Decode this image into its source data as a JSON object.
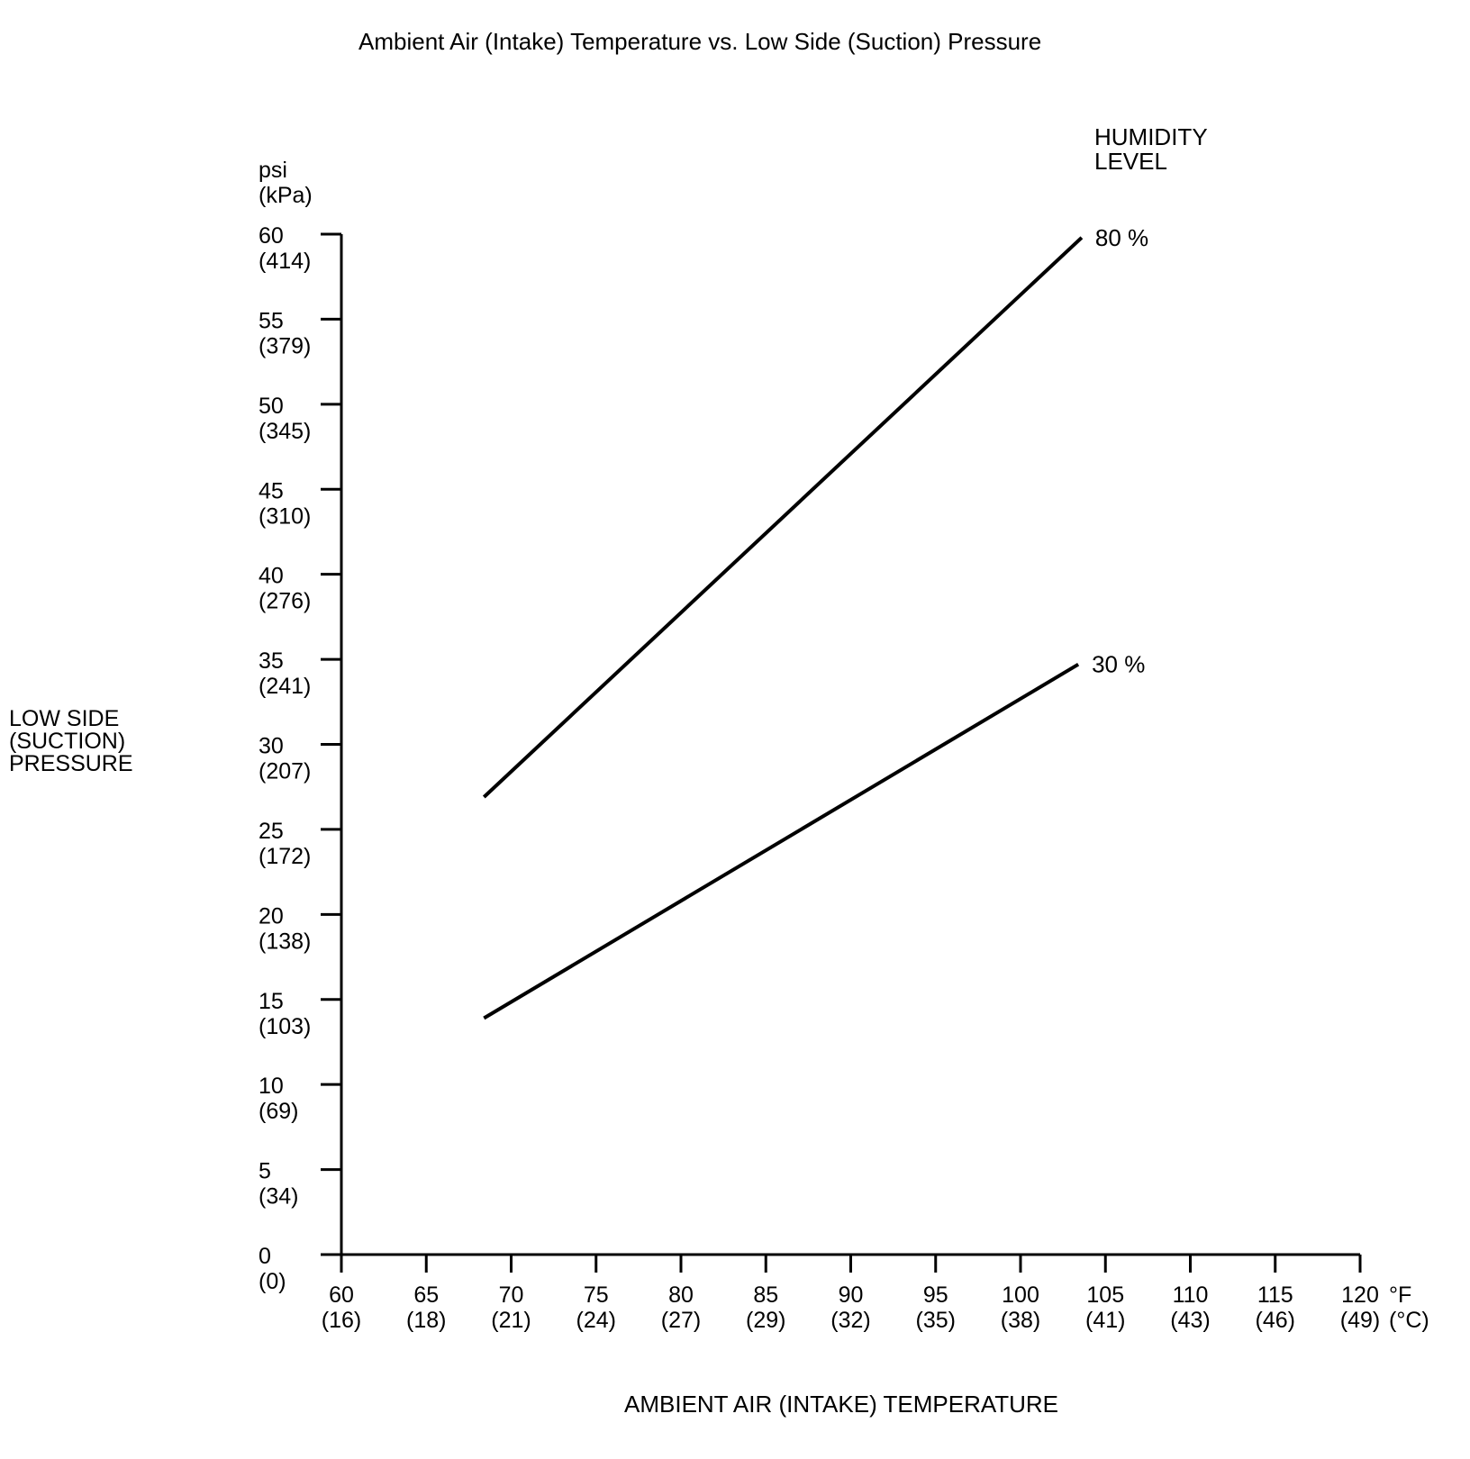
{
  "chart_data": {
    "type": "line",
    "title": "Ambient Air (Intake) Temperature vs. Low Side (Suction) Pressure",
    "xlabel": "AMBIENT AIR (INTAKE) TEMPERATURE",
    "ylabel": "LOW SIDE\n(SUCTION)\nPRESSURE",
    "legend_title": "HUMIDITY\nLEVEL",
    "x_unit_primary": "°F",
    "x_unit_secondary": "°C",
    "y_unit_primary": "psi",
    "y_unit_secondary": "kPa",
    "xlim": [
      60,
      120
    ],
    "ylim": [
      0,
      60
    ],
    "grid": false,
    "x_ticks": [
      {
        "f": 60,
        "c": 16
      },
      {
        "f": 65,
        "c": 18
      },
      {
        "f": 70,
        "c": 21
      },
      {
        "f": 75,
        "c": 24
      },
      {
        "f": 80,
        "c": 27
      },
      {
        "f": 85,
        "c": 29
      },
      {
        "f": 90,
        "c": 32
      },
      {
        "f": 95,
        "c": 35
      },
      {
        "f": 100,
        "c": 38
      },
      {
        "f": 105,
        "c": 41
      },
      {
        "f": 110,
        "c": 43
      },
      {
        "f": 115,
        "c": 46
      },
      {
        "f": 120,
        "c": 49
      }
    ],
    "y_ticks": [
      {
        "psi": 60,
        "kpa": 414
      },
      {
        "psi": 55,
        "kpa": 379
      },
      {
        "psi": 50,
        "kpa": 345
      },
      {
        "psi": 45,
        "kpa": 310
      },
      {
        "psi": 40,
        "kpa": 276
      },
      {
        "psi": 35,
        "kpa": 241
      },
      {
        "psi": 30,
        "kpa": 207
      },
      {
        "psi": 25,
        "kpa": 172
      },
      {
        "psi": 20,
        "kpa": 138
      },
      {
        "psi": 15,
        "kpa": 103
      },
      {
        "psi": 10,
        "kpa": 69
      },
      {
        "psi": 5,
        "kpa": 34
      },
      {
        "psi": 0,
        "kpa": 0
      }
    ],
    "series": [
      {
        "name": "80 %",
        "points": [
          [
            68.4,
            26.9
          ],
          [
            103.6,
            59.8
          ]
        ]
      },
      {
        "name": "30 %",
        "points": [
          [
            68.4,
            13.9
          ],
          [
            103.4,
            34.7
          ]
        ]
      }
    ],
    "colors": {
      "line": "#000000",
      "text": "#000000",
      "background": "#ffffff"
    }
  }
}
